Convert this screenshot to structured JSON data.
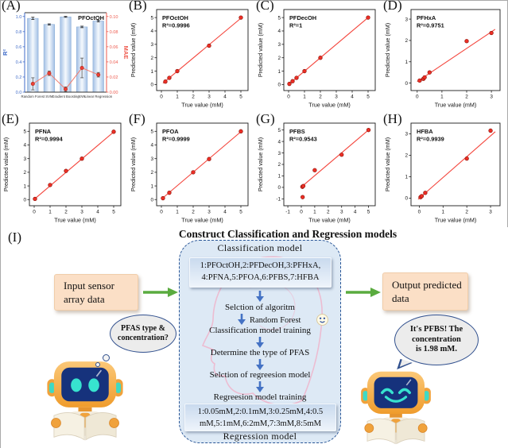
{
  "chart_data": [
    {
      "id": "A",
      "letter": "(A)",
      "type": "bar",
      "title": "PFOctOH",
      "categories": [
        "Random Forest",
        "SVM",
        "Gradient Boosting",
        "KNN",
        "Linear Regression"
      ],
      "series": [
        {
          "name": "R2",
          "axis": "left",
          "values": [
            0.975,
            0.895,
            0.995,
            0.862,
            0.94
          ],
          "errors": [
            0.015,
            0.008,
            0.006,
            0.01,
            0.012
          ]
        },
        {
          "name": "MAE",
          "axis": "right",
          "values": [
            0.011,
            0.025,
            0.004,
            0.032,
            0.023
          ],
          "errors": [
            0.008,
            0.003,
            0.003,
            0.013,
            0.003
          ]
        }
      ],
      "left_axis": {
        "label": "R²",
        "range": [
          0,
          1.05
        ],
        "ticks": [
          0,
          0.2,
          0.4,
          0.6,
          0.8,
          1.0
        ],
        "tick_labels": [
          "0.0",
          "0.2",
          "0.4",
          "0.6",
          "0.8",
          "1.0"
        ],
        "color": "#3f6bc8"
      },
      "right_axis": {
        "label": "MAE",
        "range": [
          0,
          0.105
        ],
        "ticks": [
          0,
          0.02,
          0.04,
          0.06,
          0.08,
          0.1
        ],
        "tick_labels": [
          "0.00",
          "0.02",
          "0.04",
          "0.06",
          "0.08",
          "0.10"
        ],
        "color": "#ee5a4e"
      },
      "bar_color": "#a3c0e5",
      "line_color": "#f07f72",
      "point_color": "#ee3f34"
    },
    {
      "id": "B",
      "letter": "(B)",
      "type": "scatter",
      "label": "PFOctOH",
      "r2": "R²=0.9996",
      "points": [
        [
          0.25,
          0.22
        ],
        [
          0.5,
          0.5
        ],
        [
          1,
          1.0
        ],
        [
          3,
          2.9
        ],
        [
          5,
          5.0
        ]
      ],
      "line": [
        [
          0.1,
          0.1
        ],
        [
          5.05,
          5.0
        ]
      ],
      "xlim": [
        -0.3,
        5.45
      ],
      "ylim": [
        -0.45,
        5.6
      ],
      "xticks": [
        0,
        1,
        2,
        3,
        4,
        5
      ],
      "yticks": [
        0,
        1,
        2,
        3,
        4,
        5
      ],
      "xlabel": "True value (mM)",
      "ylabel": "Predicted value (mM)"
    },
    {
      "id": "C",
      "letter": "(C)",
      "type": "scatter",
      "label": "PFDecOH",
      "r2": "R²=1",
      "points": [
        [
          0.05,
          0.05
        ],
        [
          0.25,
          0.25
        ],
        [
          0.5,
          0.5
        ],
        [
          1,
          1.0
        ],
        [
          2,
          2.0
        ],
        [
          5,
          5.0
        ]
      ],
      "line": [
        [
          0,
          0
        ],
        [
          5.1,
          5.1
        ]
      ],
      "xlim": [
        -0.3,
        5.45
      ],
      "ylim": [
        -0.45,
        5.6
      ],
      "xticks": [
        0,
        1,
        2,
        3,
        4,
        5
      ],
      "yticks": [
        0,
        1,
        2,
        3,
        4,
        5
      ],
      "xlabel": "True value (mM)",
      "ylabel": "Predicted value (mM)"
    },
    {
      "id": "D",
      "letter": "(D)",
      "type": "scatter",
      "label": "PFHxA",
      "r2": "R²=0.9751",
      "points": [
        [
          0.1,
          0.12
        ],
        [
          0.25,
          0.2
        ],
        [
          0.3,
          0.27
        ],
        [
          0.5,
          0.5
        ],
        [
          2,
          1.97
        ],
        [
          3,
          2.35
        ]
      ],
      "line": [
        [
          0,
          0.07
        ],
        [
          3.15,
          2.52
        ]
      ],
      "xlim": [
        -0.25,
        3.35
      ],
      "ylim": [
        -0.35,
        3.45
      ],
      "xticks": [
        0,
        1,
        2,
        3
      ],
      "yticks": [
        0,
        1,
        2,
        3
      ],
      "xlabel": "True value (mM)",
      "ylabel": "Predicted value (mM)"
    },
    {
      "id": "E",
      "letter": "(E)",
      "type": "scatter",
      "label": "PFNA",
      "r2": "R²=0.9994",
      "points": [
        [
          0.05,
          0.05
        ],
        [
          1,
          1.07
        ],
        [
          2,
          2.1
        ],
        [
          3,
          3.0
        ],
        [
          5,
          4.97
        ]
      ],
      "line": [
        [
          0,
          0.02
        ],
        [
          5.1,
          5.05
        ]
      ],
      "xlim": [
        -0.3,
        5.45
      ],
      "ylim": [
        -0.45,
        5.6
      ],
      "xticks": [
        0,
        1,
        2,
        3,
        4,
        5
      ],
      "yticks": [
        0,
        1,
        2,
        3,
        4,
        5
      ],
      "xlabel": "True value (mM)",
      "ylabel": "Predicted value (mM)"
    },
    {
      "id": "F",
      "letter": "(F)",
      "type": "scatter",
      "label": "PFOA",
      "r2": "R²=0.9999",
      "points": [
        [
          0.1,
          0.1
        ],
        [
          0.5,
          0.5
        ],
        [
          2,
          2.0
        ],
        [
          3,
          2.97
        ],
        [
          5,
          5.0
        ]
      ],
      "line": [
        [
          0,
          0.03
        ],
        [
          5.1,
          5.07
        ]
      ],
      "xlim": [
        -0.3,
        5.45
      ],
      "ylim": [
        -0.45,
        5.6
      ],
      "xticks": [
        0,
        1,
        2,
        3,
        4,
        5
      ],
      "yticks": [
        0,
        1,
        2,
        3,
        4,
        5
      ],
      "xlabel": "True value (mM)",
      "ylabel": "Predicted value (mM)"
    },
    {
      "id": "G",
      "letter": "(G)",
      "type": "scatter",
      "label": "PFBS",
      "r2": "R²=0.9543",
      "points": [
        [
          0.1,
          -0.85
        ],
        [
          0.08,
          0.05
        ],
        [
          0.15,
          0.12
        ],
        [
          1,
          1.5
        ],
        [
          3,
          2.85
        ],
        [
          5,
          5.0
        ]
      ],
      "line": [
        [
          -0.05,
          -0.02
        ],
        [
          5.1,
          5.1
        ]
      ],
      "xlim": [
        -1.3,
        5.5
      ],
      "ylim": [
        -1.6,
        5.6
      ],
      "xticks": [
        -1,
        0,
        1,
        2,
        3,
        4,
        5
      ],
      "yticks": [
        -1,
        0,
        1,
        2,
        3,
        4,
        5
      ],
      "xlabel": "True value (mM)",
      "ylabel": "Predicted value (mM)"
    },
    {
      "id": "H",
      "letter": "(H)",
      "type": "scatter",
      "label": "HFBA",
      "r2": "R²=0.9939",
      "points": [
        [
          0.05,
          0.05
        ],
        [
          0.1,
          0.1
        ],
        [
          0.25,
          0.25
        ],
        [
          2,
          1.85
        ],
        [
          3,
          3.15
        ]
      ],
      "line": [
        [
          -0.05,
          -0.05
        ],
        [
          3.2,
          3.1
        ]
      ],
      "xlim": [
        -0.35,
        3.4
      ],
      "ylim": [
        -0.35,
        3.5
      ],
      "xticks": [
        0,
        1,
        2,
        3
      ],
      "yticks": [
        0,
        1,
        2,
        3
      ],
      "xlabel": "True value (mM)",
      "ylabel": "Predicted value (mM)"
    }
  ],
  "diagram": {
    "label": "(I)",
    "title": "Construct Classification and Regression models",
    "input_box": "Input sensor\narray data",
    "output_box": "Output predicted\ndata",
    "thought_bubble": "PFAS type &\nconcentration?",
    "speech_bubble": "It's PFBS! The\nconcentration\nis 1.98 mM.",
    "model_box": {
      "classification_heading": "Classification model",
      "classes_list": "1:PFOctOH,2:PFDecOH,3:PFHxA,\n4:PFNA,5:PFOA,6:PFBS,7:HFBA",
      "step_algorithm": "Selction of algoritm",
      "random_forest_label": "Random Forest",
      "step_training": "Classification model training",
      "step_determine": "Determine the type of PFAS",
      "step_select_regression": "Selction of regreesion model",
      "step_regression_training": "Regreesion model training",
      "concentrations_list": "1:0.05mM,2:0.1mM,3:0.25mM,4:0.5\nmM,5:1mM,6:2mM,7:3mM,8:5mM",
      "regression_heading": "Regression model"
    }
  }
}
